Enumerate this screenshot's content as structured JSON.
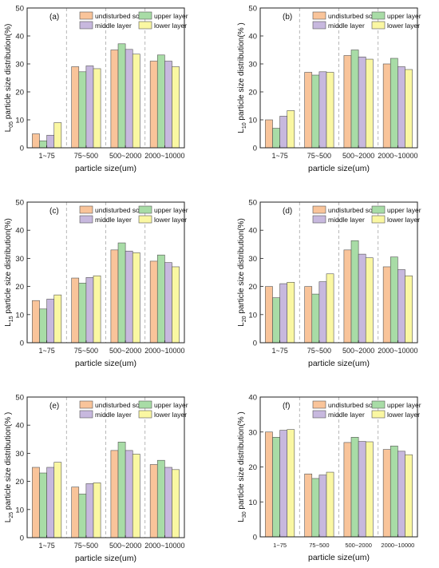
{
  "colors": {
    "undisturbed_soil": "#F9C49A",
    "upper_layer": "#A8DCA6",
    "middle_layer": "#C7B8DE",
    "lower_layer": "#FAF7A2",
    "bar_stroke": "#555555"
  },
  "chart_data": [
    {
      "type": "bar",
      "panel_label": "(a)",
      "ylabel": {
        "prefix": "L",
        "sub": "05",
        "suffix": " particle size distribution(%)"
      },
      "xlabel": "particle size(um)",
      "categories": [
        "1~75",
        "75~500",
        "500~2000",
        "2000~10000"
      ],
      "ylim": [
        0,
        50
      ],
      "yticks": [
        0,
        10,
        20,
        30,
        40,
        50
      ],
      "legend_position": "top-center",
      "series": [
        {
          "name": "undisturbed soil",
          "color_key": "undisturbed_soil",
          "values": [
            5.0,
            29.0,
            35.0,
            31.0
          ]
        },
        {
          "name": "upper layer",
          "color_key": "upper_layer",
          "values": [
            2.5,
            27.2,
            37.2,
            33.2
          ]
        },
        {
          "name": "middle layer",
          "color_key": "middle_layer",
          "values": [
            4.5,
            29.3,
            35.2,
            31.0
          ]
        },
        {
          "name": "lower layer",
          "color_key": "lower_layer",
          "values": [
            9.0,
            28.3,
            33.5,
            29.0
          ]
        }
      ]
    },
    {
      "type": "bar",
      "panel_label": "(b)",
      "ylabel": {
        "prefix": "L",
        "sub": "10",
        "suffix": " particle size distribution(% )"
      },
      "xlabel": "particle size(um)",
      "categories": [
        "1~75",
        "75~500",
        "500~2000",
        "2000~10000"
      ],
      "ylim": [
        0,
        50
      ],
      "yticks": [
        0,
        10,
        20,
        30,
        40,
        50
      ],
      "legend_position": "top-center",
      "series": [
        {
          "name": "undisturbed soil",
          "color_key": "undisturbed_soil",
          "values": [
            10.0,
            27.0,
            33.0,
            30.0
          ]
        },
        {
          "name": "upper layer",
          "color_key": "upper_layer",
          "values": [
            7.0,
            26.0,
            35.0,
            32.0
          ]
        },
        {
          "name": "middle layer",
          "color_key": "middle_layer",
          "values": [
            11.3,
            27.2,
            32.5,
            29.0
          ]
        },
        {
          "name": "lower layer",
          "color_key": "lower_layer",
          "values": [
            13.3,
            27.0,
            31.7,
            28.0
          ]
        }
      ]
    },
    {
      "type": "bar",
      "panel_label": "(c)",
      "ylabel": {
        "prefix": "L",
        "sub": "15",
        "suffix": " particle size distribution(%)"
      },
      "xlabel": "particle size(um)",
      "categories": [
        "1~75",
        "75~500",
        "500~2000",
        "2000~10000"
      ],
      "ylim": [
        0,
        50
      ],
      "yticks": [
        0,
        10,
        20,
        30,
        40,
        50
      ],
      "legend_position": "top-center",
      "series": [
        {
          "name": "undisturbed soil",
          "color_key": "undisturbed_soil",
          "values": [
            15.0,
            23.0,
            33.0,
            29.0
          ]
        },
        {
          "name": "upper layer",
          "color_key": "upper_layer",
          "values": [
            12.0,
            21.2,
            35.5,
            31.2
          ]
        },
        {
          "name": "middle layer",
          "color_key": "middle_layer",
          "values": [
            15.5,
            23.2,
            32.6,
            28.5
          ]
        },
        {
          "name": "lower layer",
          "color_key": "lower_layer",
          "values": [
            17.0,
            23.8,
            32.0,
            27.0
          ]
        }
      ]
    },
    {
      "type": "bar",
      "panel_label": "(d)",
      "ylabel": {
        "prefix": "L",
        "sub": "20",
        "suffix": " particle size distribution(%)"
      },
      "xlabel": "particle size(um)",
      "categories": [
        "1~75",
        "75~500",
        "500~2000",
        "2000~10000"
      ],
      "ylim": [
        0,
        50
      ],
      "yticks": [
        0,
        10,
        20,
        30,
        40,
        50
      ],
      "legend_position": "top-center",
      "series": [
        {
          "name": "undisturbed soil",
          "color_key": "undisturbed_soil",
          "values": [
            20.0,
            20.0,
            33.0,
            27.0
          ]
        },
        {
          "name": "upper layer",
          "color_key": "upper_layer",
          "values": [
            16.0,
            17.3,
            36.3,
            30.5
          ]
        },
        {
          "name": "middle layer",
          "color_key": "middle_layer",
          "values": [
            21.0,
            21.7,
            31.5,
            26.0
          ]
        },
        {
          "name": "lower layer",
          "color_key": "lower_layer",
          "values": [
            21.5,
            24.5,
            30.2,
            23.8
          ]
        }
      ]
    },
    {
      "type": "bar",
      "panel_label": "(e)",
      "ylabel": {
        "prefix": "L",
        "sub": "25",
        "suffix": " particle size distribution(% )"
      },
      "xlabel": "particle size(um)",
      "categories": [
        "1~75",
        "75~500",
        "500~2000",
        "2000~10000"
      ],
      "ylim": [
        0,
        50
      ],
      "yticks": [
        0,
        10,
        20,
        30,
        40,
        50
      ],
      "legend_position": "top-center",
      "series": [
        {
          "name": "undisturbed soil",
          "color_key": "undisturbed_soil",
          "values": [
            25.0,
            18.0,
            31.0,
            26.0
          ]
        },
        {
          "name": "upper layer",
          "color_key": "upper_layer",
          "values": [
            23.0,
            15.5,
            34.0,
            27.5
          ]
        },
        {
          "name": "middle layer",
          "color_key": "middle_layer",
          "values": [
            25.0,
            19.2,
            31.0,
            25.0
          ]
        },
        {
          "name": "lower layer",
          "color_key": "lower_layer",
          "values": [
            26.8,
            19.5,
            29.7,
            24.2
          ]
        }
      ]
    },
    {
      "type": "bar",
      "panel_label": "(f)",
      "ylabel": {
        "prefix": "L",
        "sub": "30",
        "suffix": " particle size distribution(% )"
      },
      "xlabel": "particle size(um)",
      "categories": [
        "1~75",
        "75~500",
        "500~2000",
        "2000~10000"
      ],
      "ylim": [
        0,
        40
      ],
      "yticks": [
        0,
        10,
        20,
        30,
        40
      ],
      "legend_position": "top-center",
      "series": [
        {
          "name": "undisturbed soil",
          "color_key": "undisturbed_soil",
          "values": [
            30.0,
            18.0,
            27.0,
            25.0
          ]
        },
        {
          "name": "upper layer",
          "color_key": "upper_layer",
          "values": [
            28.5,
            16.7,
            28.5,
            26.0
          ]
        },
        {
          "name": "middle layer",
          "color_key": "middle_layer",
          "values": [
            30.5,
            17.7,
            27.3,
            24.5
          ]
        },
        {
          "name": "lower layer",
          "color_key": "lower_layer",
          "values": [
            30.7,
            18.5,
            27.2,
            23.5
          ]
        }
      ]
    }
  ]
}
